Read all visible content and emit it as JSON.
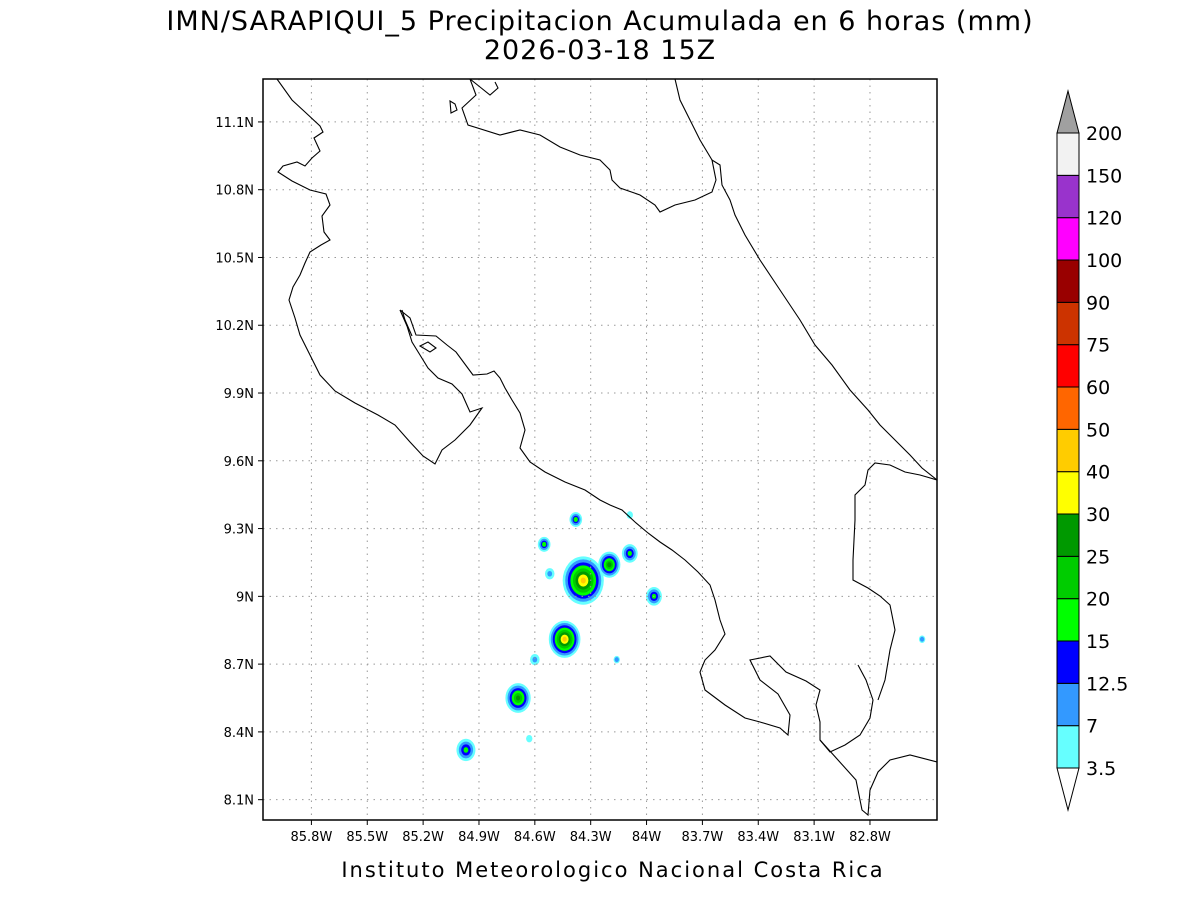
{
  "title": {
    "line1": "IMN/SARAPIQUI_5 Precipitacion Acumulada en 6 horas (mm)",
    "line2": "2026-03-18 15Z"
  },
  "map": {
    "lon_range": [
      -86.06,
      -82.44
    ],
    "lat_range": [
      8.01,
      11.29
    ],
    "x_ticks": [
      {
        "v": -85.8,
        "label": "85.8W"
      },
      {
        "v": -85.5,
        "label": "85.5W"
      },
      {
        "v": -85.2,
        "label": "85.2W"
      },
      {
        "v": -84.9,
        "label": "84.9W"
      },
      {
        "v": -84.6,
        "label": "84.6W"
      },
      {
        "v": -84.3,
        "label": "84.3W"
      },
      {
        "v": -84.0,
        "label": "84W"
      },
      {
        "v": -83.7,
        "label": "83.7W"
      },
      {
        "v": -83.4,
        "label": "83.4W"
      },
      {
        "v": -83.1,
        "label": "83.1W"
      },
      {
        "v": -82.8,
        "label": "82.8W"
      }
    ],
    "y_ticks": [
      {
        "v": 11.1,
        "label": "11.1N"
      },
      {
        "v": 10.8,
        "label": "10.8N"
      },
      {
        "v": 10.5,
        "label": "10.5N"
      },
      {
        "v": 10.2,
        "label": "10.2N"
      },
      {
        "v": 9.9,
        "label": "9.9N"
      },
      {
        "v": 9.6,
        "label": "9.6N"
      },
      {
        "v": 9.3,
        "label": "9.3N"
      },
      {
        "v": 9.0,
        "label": "9N"
      },
      {
        "v": 8.7,
        "label": "8.7N"
      },
      {
        "v": 8.4,
        "label": "8.4N"
      },
      {
        "v": 8.1,
        "label": "8.1N"
      }
    ],
    "grid": "dotted"
  },
  "colorbar": {
    "levels": [
      "3.5",
      "7",
      "12.5",
      "15",
      "20",
      "25",
      "30",
      "40",
      "50",
      "60",
      "75",
      "90",
      "100",
      "120",
      "150",
      "200"
    ],
    "colors": [
      "#66ffff",
      "#3399ff",
      "#0000ff",
      "#00ff00",
      "#00cc00",
      "#009900",
      "#ffff00",
      "#ffcc00",
      "#ff6600",
      "#ff0000",
      "#cc3300",
      "#990000",
      "#ff00ff",
      "#9933cc",
      "#f2f2f2",
      "#a0a0a0"
    ],
    "under_color": "#ffffff"
  },
  "precip_cells": [
    {
      "lon": -84.34,
      "lat": 9.07,
      "r": 0.13,
      "peak": 40
    },
    {
      "lon": -84.2,
      "lat": 9.14,
      "r": 0.07,
      "peak": 25
    },
    {
      "lon": -84.09,
      "lat": 9.19,
      "r": 0.05,
      "peak": 15
    },
    {
      "lon": -84.44,
      "lat": 8.81,
      "r": 0.1,
      "peak": 40
    },
    {
      "lon": -84.69,
      "lat": 8.55,
      "r": 0.08,
      "peak": 25
    },
    {
      "lon": -84.97,
      "lat": 8.32,
      "r": 0.06,
      "peak": 15
    },
    {
      "lon": -84.55,
      "lat": 9.23,
      "r": 0.04,
      "peak": 15
    },
    {
      "lon": -84.38,
      "lat": 9.34,
      "r": 0.04,
      "peak": 15
    },
    {
      "lon": -83.96,
      "lat": 9.0,
      "r": 0.05,
      "peak": 15
    },
    {
      "lon": -84.52,
      "lat": 9.1,
      "r": 0.03,
      "peak": 7
    },
    {
      "lon": -84.6,
      "lat": 8.72,
      "r": 0.03,
      "peak": 7
    },
    {
      "lon": -84.16,
      "lat": 8.72,
      "r": 0.02,
      "peak": 7
    },
    {
      "lon": -82.52,
      "lat": 8.81,
      "r": 0.02,
      "peak": 7
    },
    {
      "lon": -84.09,
      "lat": 9.36,
      "r": 0.02,
      "peak": 3.5
    },
    {
      "lon": -84.63,
      "lat": 8.37,
      "r": 0.02,
      "peak": 3.5
    }
  ],
  "footer": {
    "credit": "Instituto Meteorologico Nacional Costa Rica"
  }
}
